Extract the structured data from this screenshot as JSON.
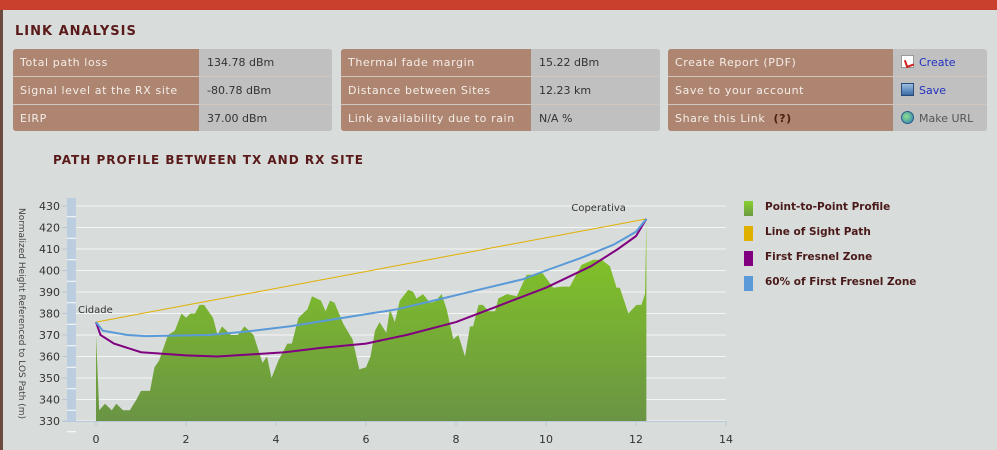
{
  "title": "LINK ANALYSIS",
  "tables": [
    {
      "rows": [
        {
          "label": "Total path loss",
          "value": "134.78 dBm"
        },
        {
          "label": "Signal level at the RX site",
          "value": "-80.78 dBm"
        },
        {
          "label": "EIRP",
          "value": "37.00 dBm"
        }
      ]
    },
    {
      "rows": [
        {
          "label": "Thermal fade margin",
          "value": "15.22 dBm"
        },
        {
          "label": "Distance between Sites",
          "value": "12.23 km"
        },
        {
          "label": "Link availability due to rain",
          "value": "N/A %"
        }
      ]
    }
  ],
  "actions": {
    "create": {
      "label": "Create Report (PDF)",
      "action": "Create",
      "icon": "pdf-icon"
    },
    "save": {
      "label": "Save to your account",
      "action": "Save",
      "icon": "floppy-disk-icon"
    },
    "share": {
      "label": "Share this Link",
      "help": "(?)",
      "action": "Make URL",
      "icon": "globe-icon"
    }
  },
  "chart_title": "PATH PROFILE BETWEEN TX AND RX SITE",
  "chart_data": {
    "type": "area",
    "ylabel": "Normalized Height Referenced to LOS Path (m)",
    "xlabel": "",
    "xlim": [
      -0.75,
      14
    ],
    "ylim": [
      330,
      430
    ],
    "xticks": [
      0,
      2,
      4,
      6,
      8,
      10,
      12,
      14
    ],
    "yticks": [
      330,
      340,
      350,
      360,
      370,
      380,
      390,
      400,
      410,
      420,
      430
    ],
    "grid": true,
    "legend_position": "right",
    "annotations": [
      {
        "text": "Cidade",
        "x": 0,
        "y": 376
      },
      {
        "text": "Coperativa",
        "x": 12.23,
        "y": 424
      }
    ],
    "series": [
      {
        "name": "Point-to-Point Profile",
        "color": "#7ab82a",
        "type": "area",
        "points": [
          [
            0,
            370
          ],
          [
            0.07,
            335
          ],
          [
            0.2,
            338
          ],
          [
            0.35,
            335
          ],
          [
            0.45,
            338
          ],
          [
            0.6,
            335
          ],
          [
            0.75,
            335
          ],
          [
            0.9,
            340
          ],
          [
            1.0,
            344
          ],
          [
            1.2,
            344
          ],
          [
            1.3,
            355
          ],
          [
            1.4,
            358
          ],
          [
            1.6,
            370
          ],
          [
            1.75,
            372
          ],
          [
            1.9,
            380
          ],
          [
            2.0,
            378
          ],
          [
            2.1,
            380
          ],
          [
            2.2,
            380
          ],
          [
            2.3,
            384
          ],
          [
            2.4,
            384
          ],
          [
            2.6,
            378
          ],
          [
            2.7,
            370
          ],
          [
            2.8,
            374
          ],
          [
            3.0,
            370
          ],
          [
            3.15,
            370
          ],
          [
            3.3,
            374
          ],
          [
            3.5,
            370
          ],
          [
            3.7,
            357
          ],
          [
            3.8,
            360
          ],
          [
            3.9,
            350
          ],
          [
            4.05,
            358
          ],
          [
            4.25,
            366
          ],
          [
            4.35,
            366
          ],
          [
            4.5,
            378
          ],
          [
            4.7,
            382
          ],
          [
            4.8,
            388
          ],
          [
            5.0,
            386
          ],
          [
            5.1,
            381
          ],
          [
            5.2,
            386
          ],
          [
            5.3,
            385
          ],
          [
            5.5,
            375
          ],
          [
            5.7,
            368
          ],
          [
            5.85,
            354
          ],
          [
            6.0,
            355
          ],
          [
            6.1,
            360
          ],
          [
            6.2,
            372
          ],
          [
            6.3,
            376
          ],
          [
            6.45,
            371
          ],
          [
            6.53,
            382
          ],
          [
            6.64,
            376
          ],
          [
            6.75,
            386
          ],
          [
            6.94,
            391
          ],
          [
            7.05,
            390
          ],
          [
            7.12,
            387
          ],
          [
            7.27,
            389
          ],
          [
            7.42,
            385
          ],
          [
            7.53,
            385.5
          ],
          [
            7.68,
            389
          ],
          [
            7.79,
            382
          ],
          [
            7.94,
            368
          ],
          [
            8.05,
            370
          ],
          [
            8.2,
            360
          ],
          [
            8.31,
            374
          ],
          [
            8.38,
            374
          ],
          [
            8.5,
            384
          ],
          [
            8.6,
            384
          ],
          [
            8.72,
            381
          ],
          [
            8.87,
            381
          ],
          [
            8.94,
            387
          ],
          [
            9.13,
            389
          ],
          [
            9.35,
            388
          ],
          [
            9.57,
            398
          ],
          [
            9.79,
            398
          ],
          [
            9.9,
            399.5
          ],
          [
            10.16,
            392
          ],
          [
            10.35,
            392.5
          ],
          [
            10.53,
            392.5
          ],
          [
            10.79,
            402.6
          ],
          [
            11.05,
            405
          ],
          [
            11.24,
            405
          ],
          [
            11.42,
            402
          ],
          [
            11.57,
            392
          ],
          [
            11.64,
            392
          ],
          [
            11.83,
            380
          ],
          [
            12.01,
            384
          ],
          [
            12.12,
            384
          ],
          [
            12.2,
            389
          ],
          [
            12.23,
            424
          ]
        ]
      },
      {
        "name": "Line of Sight Path",
        "color": "#e0b000",
        "type": "line",
        "points": [
          [
            0,
            376
          ],
          [
            12.23,
            424
          ]
        ]
      },
      {
        "name": "First Fresnel Zone",
        "color": "#800080",
        "type": "line",
        "points": [
          [
            0,
            376
          ],
          [
            0.1,
            370
          ],
          [
            0.4,
            366
          ],
          [
            1.0,
            362
          ],
          [
            2.0,
            360.5
          ],
          [
            2.7,
            360
          ],
          [
            3.5,
            361
          ],
          [
            4.2,
            362
          ],
          [
            5.0,
            364
          ],
          [
            6.0,
            366
          ],
          [
            6.9,
            370
          ],
          [
            8.0,
            376
          ],
          [
            9.0,
            384
          ],
          [
            10.0,
            392
          ],
          [
            11.0,
            402
          ],
          [
            11.6,
            410
          ],
          [
            12.0,
            416
          ],
          [
            12.23,
            424
          ]
        ]
      },
      {
        "name": "60% of First Fresnel Zone",
        "color": "#5a9ad8",
        "type": "line",
        "points": [
          [
            0,
            376
          ],
          [
            0.15,
            372
          ],
          [
            0.7,
            370
          ],
          [
            1.1,
            369.5
          ],
          [
            2.5,
            370
          ],
          [
            3.3,
            371.5
          ],
          [
            4.3,
            374
          ],
          [
            5.5,
            378
          ],
          [
            6.7,
            382
          ],
          [
            7.5,
            386
          ],
          [
            8.5,
            391
          ],
          [
            9.5,
            396
          ],
          [
            10.0,
            400
          ],
          [
            10.8,
            406
          ],
          [
            11.5,
            412
          ],
          [
            12.0,
            418
          ],
          [
            12.23,
            424
          ]
        ]
      }
    ]
  }
}
